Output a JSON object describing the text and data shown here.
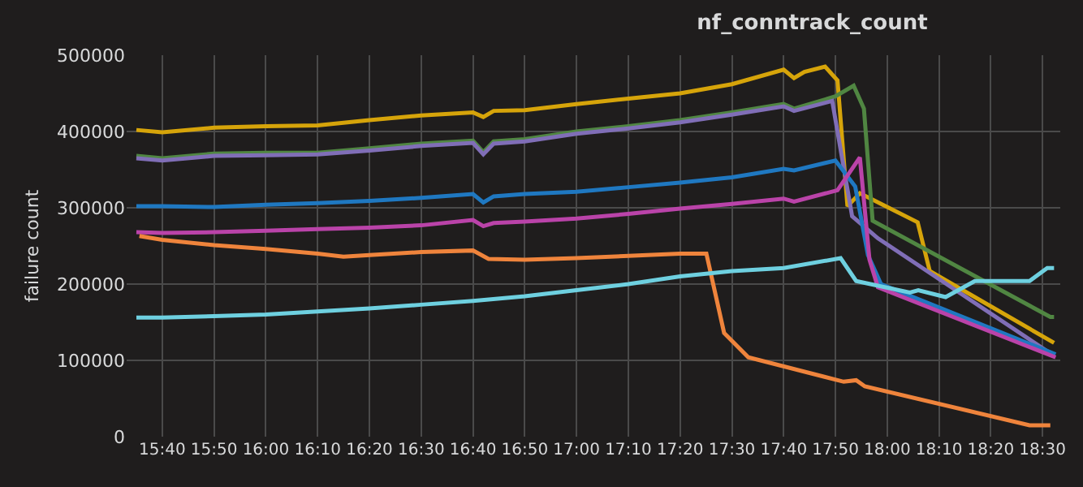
{
  "chart_data": {
    "type": "line",
    "title": "nf_conntrack_count",
    "ylabel": "failure count",
    "xlim": [
      15.552,
      18.557
    ],
    "xticks": [
      {
        "value": 15.6667,
        "label": "15:40"
      },
      {
        "value": 15.8333,
        "label": "15:50"
      },
      {
        "value": 16.0,
        "label": "16:00"
      },
      {
        "value": 16.1667,
        "label": "16:10"
      },
      {
        "value": 16.3333,
        "label": "16:20"
      },
      {
        "value": 16.5,
        "label": "16:30"
      },
      {
        "value": 16.6667,
        "label": "16:40"
      },
      {
        "value": 16.8333,
        "label": "16:50"
      },
      {
        "value": 17.0,
        "label": "17:00"
      },
      {
        "value": 17.1667,
        "label": "17:10"
      },
      {
        "value": 17.3333,
        "label": "17:20"
      },
      {
        "value": 17.5,
        "label": "17:30"
      },
      {
        "value": 17.6667,
        "label": "17:40"
      },
      {
        "value": 17.8333,
        "label": "17:50"
      },
      {
        "value": 18.0,
        "label": "18:00"
      },
      {
        "value": 18.1667,
        "label": "18:10"
      },
      {
        "value": 18.3333,
        "label": "18:20"
      },
      {
        "value": 18.5,
        "label": "18:30"
      }
    ],
    "ylim": [
      0,
      500000
    ],
    "yticks": [
      0,
      100000,
      200000,
      300000,
      400000,
      500000
    ],
    "grid": true,
    "marker": "none",
    "line_style": "solid",
    "series": [
      {
        "color": "#d6a40a",
        "x": [
          15.5833,
          15.6667,
          15.8333,
          16,
          16.1667,
          16.3333,
          16.5,
          16.6667,
          16.7,
          16.7333,
          16.8333,
          17,
          17.1667,
          17.3333,
          17.5,
          17.6667,
          17.7,
          17.7333,
          17.8,
          17.84,
          17.872,
          17.912,
          18.098,
          18.137,
          18.537
        ],
        "values": [
          402000,
          399000,
          405000,
          407000,
          408000,
          415000,
          421000,
          425000,
          419000,
          427000,
          428000,
          436000,
          443000,
          450000,
          462000,
          481000,
          470000,
          478000,
          485000,
          467000,
          302000,
          319000,
          281000,
          217000,
          123000
        ]
      },
      {
        "color": "#508642",
        "x": [
          15.5833,
          15.6667,
          15.8333,
          16,
          16.1667,
          16.3333,
          16.5,
          16.6667,
          16.7,
          16.7333,
          16.8333,
          17,
          17.1667,
          17.3333,
          17.5,
          17.6667,
          17.7,
          17.8333,
          17.892,
          17.925,
          17.953,
          18.525,
          18.537
        ],
        "values": [
          368000,
          365000,
          371000,
          372000,
          372000,
          378000,
          384000,
          388000,
          373000,
          387000,
          390000,
          400000,
          407000,
          415000,
          425000,
          436000,
          430000,
          446000,
          460000,
          430000,
          283000,
          157000,
          157000
        ]
      },
      {
        "color": "#806eb7",
        "x": [
          15.5833,
          15.6667,
          15.8333,
          16,
          16.1667,
          16.3333,
          16.5,
          16.6667,
          16.7,
          16.7333,
          16.8333,
          17,
          17.1667,
          17.3333,
          17.5,
          17.6667,
          17.7,
          17.823,
          17.887,
          17.97,
          18.537
        ],
        "values": [
          365000,
          362000,
          368000,
          369000,
          370000,
          375000,
          381000,
          385000,
          370000,
          384000,
          387000,
          397000,
          404000,
          412000,
          422000,
          433000,
          427000,
          440000,
          289000,
          260000,
          106000
        ]
      },
      {
        "color": "#1f78c1",
        "x": [
          15.5833,
          15.6667,
          15.8333,
          16,
          16.1667,
          16.3333,
          16.5,
          16.6667,
          16.7,
          16.7333,
          16.8333,
          17,
          17.1667,
          17.3333,
          17.5,
          17.6667,
          17.7,
          17.8333,
          17.897,
          17.938,
          17.98,
          18.542
        ],
        "values": [
          302000,
          302000,
          301000,
          304000,
          306000,
          309000,
          313000,
          318000,
          307000,
          315000,
          318000,
          321000,
          327000,
          333000,
          340000,
          351000,
          349000,
          362000,
          328000,
          238000,
          200000,
          108000
        ]
      },
      {
        "color": "#ba43a9",
        "x": [
          15.5833,
          15.6667,
          15.8333,
          16,
          16.1667,
          16.3333,
          16.5,
          16.6667,
          16.7,
          16.7333,
          16.8333,
          17,
          17.1667,
          17.3333,
          17.5,
          17.6667,
          17.7,
          17.84,
          17.912,
          17.943,
          17.97,
          18.542
        ],
        "values": [
          268000,
          267000,
          268000,
          270000,
          272000,
          274000,
          277000,
          284000,
          276000,
          280000,
          282000,
          286000,
          292000,
          299000,
          305000,
          312000,
          308000,
          323000,
          366000,
          232000,
          196000,
          104000
        ]
      },
      {
        "color": "#ef843c",
        "x": [
          15.593,
          15.6667,
          15.8333,
          16,
          16.1667,
          16.25,
          16.3333,
          16.5,
          16.6667,
          16.7167,
          16.8333,
          17,
          17.1667,
          17.3333,
          17.418,
          17.475,
          17.553,
          17.86,
          17.9,
          17.928,
          18.458,
          18.525
        ],
        "values": [
          263000,
          258000,
          251000,
          246000,
          240000,
          236000,
          238000,
          242000,
          244000,
          233000,
          232000,
          234000,
          237000,
          240000,
          240000,
          136000,
          104000,
          72000,
          74000,
          66000,
          15000,
          15000
        ]
      },
      {
        "color": "#6ed0e0",
        "x": [
          15.5833,
          15.6667,
          15.8333,
          16,
          16.1667,
          16.3333,
          16.5,
          16.6667,
          16.8333,
          17,
          17.1667,
          17.3333,
          17.5,
          17.6667,
          17.85,
          17.9,
          18.073,
          18.1,
          18.188,
          18.282,
          18.458,
          18.515,
          18.537
        ],
        "values": [
          156000,
          156000,
          158000,
          160000,
          164000,
          168000,
          173000,
          178000,
          184000,
          192000,
          200000,
          210000,
          217000,
          221000,
          234000,
          204000,
          189000,
          192000,
          183000,
          204000,
          204000,
          221000,
          221000
        ]
      }
    ]
  }
}
